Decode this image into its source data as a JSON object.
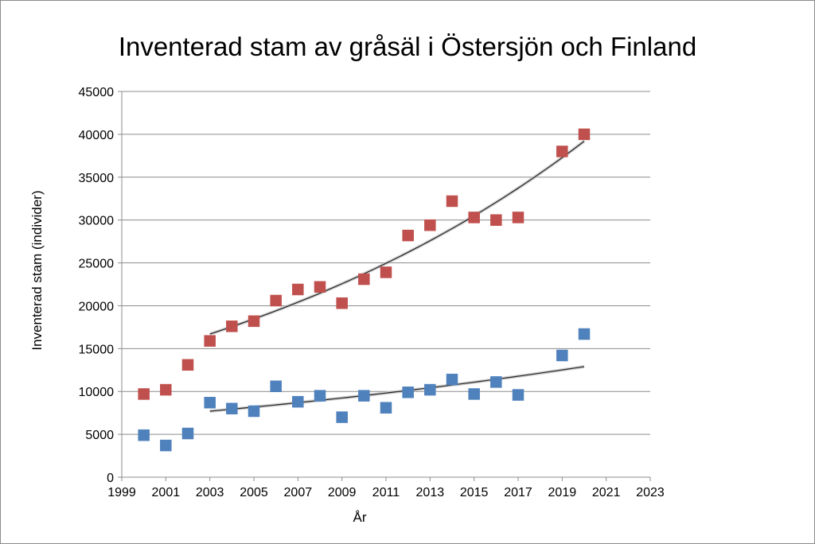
{
  "chart_data": {
    "type": "scatter",
    "title": "Inventerad stam av gråsäl i Östersjön och Finland",
    "xlabel": "År",
    "ylabel": "Inventerad stam (individer)",
    "xlim": [
      1999,
      2023
    ],
    "ylim": [
      0,
      45000
    ],
    "xticks": [
      "1999",
      "2001",
      "2003",
      "2005",
      "2007",
      "2009",
      "2011",
      "2013",
      "2015",
      "2017",
      "2019",
      "2021",
      "2023"
    ],
    "yticks": [
      "0",
      "5000",
      "10000",
      "15000",
      "20000",
      "25000",
      "30000",
      "35000",
      "40000",
      "45000"
    ],
    "grid": true,
    "legend": "none",
    "series": [
      {
        "color": "#c0504d",
        "x": [
          2000,
          2001,
          2002,
          2003,
          2004,
          2005,
          2006,
          2007,
          2008,
          2009,
          2010,
          2011,
          2012,
          2013,
          2014,
          2015,
          2016,
          2017,
          2019,
          2020
        ],
        "y": [
          9700,
          10200,
          13100,
          15900,
          17600,
          18200,
          20600,
          21900,
          22200,
          20300,
          23100,
          23900,
          28200,
          29400,
          32200,
          30300,
          30000,
          30300,
          38000,
          40000
        ],
        "trendline": {
          "x_start": 2003,
          "x_end": 2020,
          "y_start": 16700,
          "y_end": 39200
        }
      },
      {
        "color": "#4f81bd",
        "x": [
          2000,
          2001,
          2002,
          2003,
          2004,
          2005,
          2006,
          2007,
          2008,
          2009,
          2010,
          2011,
          2012,
          2013,
          2014,
          2015,
          2016,
          2017,
          2019,
          2020
        ],
        "y": [
          4900,
          3700,
          5100,
          8700,
          8000,
          7700,
          10600,
          8800,
          9500,
          7000,
          9500,
          8100,
          9900,
          10200,
          11400,
          9700,
          11100,
          9600,
          14200,
          16700
        ],
        "trendline": {
          "x_start": 2003,
          "x_end": 2020,
          "y_start": 7700,
          "y_end": 12900
        }
      }
    ]
  }
}
